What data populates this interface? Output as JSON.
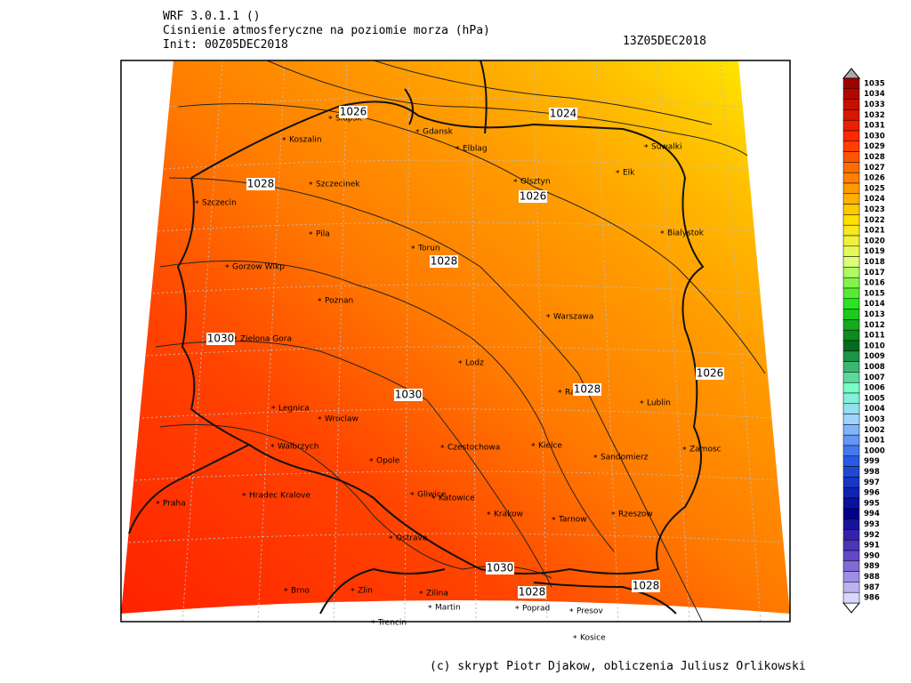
{
  "header": {
    "model": "WRF 3.0.1.1 ()",
    "title": "Cisnienie atmosferyczne na poziomie morza (hPa)",
    "init": "Init: 00Z05DEC2018",
    "valid": "13Z05DEC2018"
  },
  "footer": "(c) skrypt Piotr Djakow, obliczenia Juliusz Orlikowski",
  "cities": [
    "Slupsk",
    "Gdansk",
    "Koszalin",
    "Elblag",
    "Olsztyn",
    "Suwalki",
    "Elk",
    "Szczecinek",
    "Szczecin",
    "Pila",
    "Torun",
    "Bialystok",
    "Gorzow Wlkp",
    "Poznan",
    "Warszawa",
    "Zielona Gora",
    "Lodz",
    "Radom",
    "Lublin",
    "Legnica",
    "Wroclaw",
    "Walbrzych",
    "Czestochowa",
    "Kielce",
    "Opole",
    "Sandomierz",
    "Zamosc",
    "Praha",
    "Hradec Kralove",
    "Gliwice",
    "Katowice",
    "Krakow",
    "Tarnow",
    "Rzeszow",
    "Ostrava",
    "Brno",
    "Zlin",
    "Zilina",
    "Martin",
    "Poprad",
    "Presov",
    "Trencin",
    "Kosice"
  ],
  "isobar_labels": [
    1026,
    1024,
    1028,
    1026,
    1028,
    1030,
    1030,
    1028,
    1026,
    1030,
    1028,
    1028
  ],
  "colorbar": [
    1035,
    1034,
    1033,
    1032,
    1031,
    1030,
    1029,
    1028,
    1027,
    1026,
    1025,
    1024,
    1023,
    1022,
    1021,
    1020,
    1019,
    1018,
    1017,
    1016,
    1015,
    1014,
    1013,
    1012,
    1011,
    1010,
    1009,
    1008,
    1007,
    1006,
    1005,
    1004,
    1003,
    1002,
    1001,
    1000,
    999,
    998,
    997,
    996,
    995,
    994,
    993,
    992,
    991,
    990,
    989,
    988,
    987,
    986
  ]
}
